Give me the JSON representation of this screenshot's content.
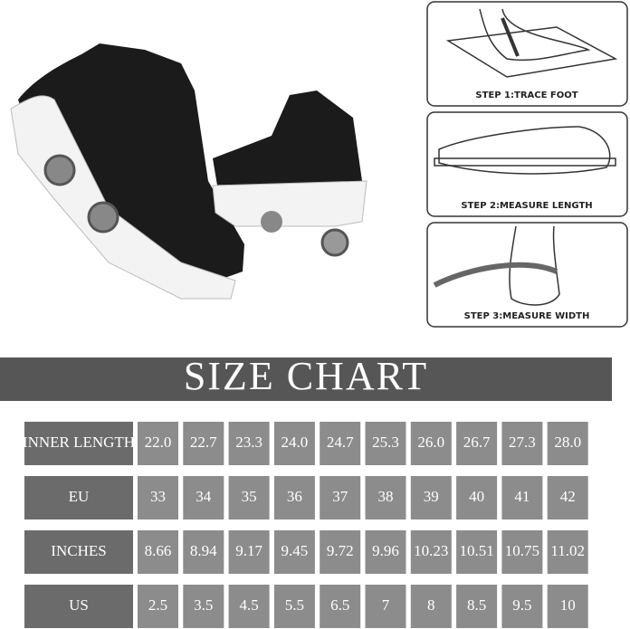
{
  "steps": [
    "STEP 1:TRACE FOOT",
    "STEP 2:MEASURE LENGTH",
    "STEP 3:MEASURE WIDTH"
  ],
  "size_chart": {
    "title": "SIZE CHART",
    "rows": [
      {
        "label": "INNER LENGTH",
        "cells": [
          "22.0",
          "22.7",
          "23.3",
          "24.0",
          "24.7",
          "25.3",
          "26.0",
          "26.7",
          "27.3",
          "28.0"
        ]
      },
      {
        "label": "EU",
        "cells": [
          "33",
          "34",
          "35",
          "36",
          "37",
          "38",
          "39",
          "40",
          "41",
          "42"
        ]
      },
      {
        "label": "INCHES",
        "cells": [
          "8.66",
          "8.94",
          "9.17",
          "9.45",
          "9.72",
          "9.96",
          "10.23",
          "10.51",
          "10.75",
          "11.02"
        ]
      },
      {
        "label": "US",
        "cells": [
          "2.5",
          "3.5",
          "4.5",
          "5.5",
          "6.5",
          "7",
          "8",
          "8.5",
          "9.5",
          "10"
        ]
      }
    ]
  }
}
